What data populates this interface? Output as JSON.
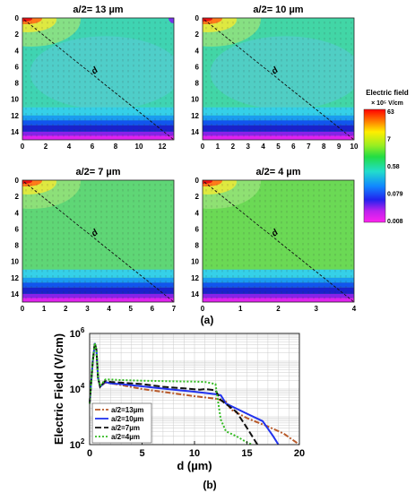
{
  "caption_a": "(a)",
  "caption_b": "(b)",
  "colorbar": {
    "title": "Electric field",
    "unit": "× 10⁵ V/cm",
    "ticks": [
      "63",
      "7",
      "0.58",
      "0.079",
      "0.008"
    ]
  },
  "colors": {
    "a13": "#b85a2a",
    "a10": "#2233ee",
    "a7": "#111111",
    "a4": "#33bb22"
  },
  "chart_data": [
    {
      "type": "heatmap",
      "title": "a/2= 13 µm",
      "x_ticks": [
        "0",
        "2",
        "4",
        "6",
        "8",
        "10",
        "12"
      ],
      "y_ticks": [
        "0",
        "2",
        "4",
        "6",
        "8",
        "10",
        "12",
        "14"
      ],
      "xlim": [
        0,
        13
      ],
      "ylim": [
        0,
        15
      ],
      "annotation": "d"
    },
    {
      "type": "heatmap",
      "title": "a/2= 10 µm",
      "x_ticks": [
        "0",
        "1",
        "2",
        "3",
        "4",
        "5",
        "6",
        "7",
        "8",
        "9",
        "10"
      ],
      "y_ticks": [
        "0",
        "2",
        "4",
        "6",
        "8",
        "10",
        "12",
        "14"
      ],
      "xlim": [
        0,
        10
      ],
      "ylim": [
        0,
        15
      ],
      "annotation": "d"
    },
    {
      "type": "heatmap",
      "title": "a/2= 7 µm",
      "x_ticks": [
        "0",
        "1",
        "2",
        "3",
        "4",
        "5",
        "6",
        "7"
      ],
      "y_ticks": [
        "0",
        "2",
        "4",
        "6",
        "8",
        "10",
        "12",
        "14"
      ],
      "xlim": [
        0,
        7
      ],
      "ylim": [
        0,
        15
      ],
      "annotation": "d"
    },
    {
      "type": "heatmap",
      "title": "a/2= 4 µm",
      "x_ticks": [
        "0",
        "1",
        "2",
        "3",
        "4"
      ],
      "y_ticks": [
        "0",
        "2",
        "4",
        "6",
        "8",
        "10",
        "12",
        "14"
      ],
      "xlim": [
        0,
        4
      ],
      "ylim": [
        0,
        15
      ],
      "annotation": "d"
    },
    {
      "type": "line",
      "xlabel": "d (µm)",
      "ylabel": "Electric Field (V/cm)",
      "xlim": [
        0,
        20
      ],
      "ylim": [
        100,
        1000000
      ],
      "y_scale": "log",
      "x_ticks": [
        "0",
        "5",
        "10",
        "15",
        "20"
      ],
      "y_ticks": [
        {
          "base": "10",
          "exp": "2"
        },
        {
          "base": "10",
          "exp": "4"
        },
        {
          "base": "10",
          "exp": "6"
        }
      ],
      "grid": true,
      "legend": "bottom-left",
      "series": [
        {
          "name": "a/2=13µm",
          "x": [
            0,
            0.3,
            0.5,
            0.65,
            0.8,
            1.0,
            1.5,
            2,
            3,
            5,
            8,
            10,
            12,
            13,
            13.5,
            15,
            17,
            18.5,
            20
          ],
          "y": [
            3000,
            100000,
            450000,
            250000,
            25000,
            12000,
            17000,
            16000,
            14000,
            10000,
            7000,
            5500,
            4500,
            3500,
            1800,
            900,
            450,
            250,
            100
          ]
        },
        {
          "name": "a/2=10µm",
          "x": [
            0,
            0.3,
            0.5,
            0.65,
            0.8,
            1.0,
            1.5,
            2,
            3,
            5,
            8,
            10,
            12,
            12.5,
            13,
            15,
            16.5,
            17.5,
            18
          ],
          "y": [
            3000,
            100000,
            450000,
            250000,
            25000,
            12000,
            18000,
            16000,
            15000,
            12500,
            9500,
            8000,
            6500,
            6000,
            3000,
            1300,
            700,
            200,
            100
          ]
        },
        {
          "name": "a/2=7µm",
          "x": [
            0,
            0.3,
            0.5,
            0.65,
            0.8,
            1.0,
            1.5,
            2,
            3,
            5,
            7,
            9,
            10.5,
            11,
            12,
            12.5,
            14,
            15,
            16
          ],
          "y": [
            3000,
            100000,
            450000,
            250000,
            25000,
            12000,
            20000,
            18000,
            17000,
            15000,
            12000,
            10500,
            9500,
            10000,
            9000,
            4000,
            1500,
            400,
            100
          ]
        },
        {
          "name": "a/2=4µm",
          "x": [
            0,
            0.3,
            0.5,
            0.65,
            0.8,
            1.0,
            1.5,
            2,
            3,
            5,
            8,
            10,
            11,
            12,
            12.5,
            13,
            14,
            15,
            15.5
          ],
          "y": [
            3000,
            100000,
            450000,
            250000,
            25000,
            13000,
            22000,
            22000,
            21000,
            20000,
            19000,
            18500,
            18000,
            15000,
            800,
            300,
            200,
            120,
            100
          ]
        }
      ]
    }
  ]
}
